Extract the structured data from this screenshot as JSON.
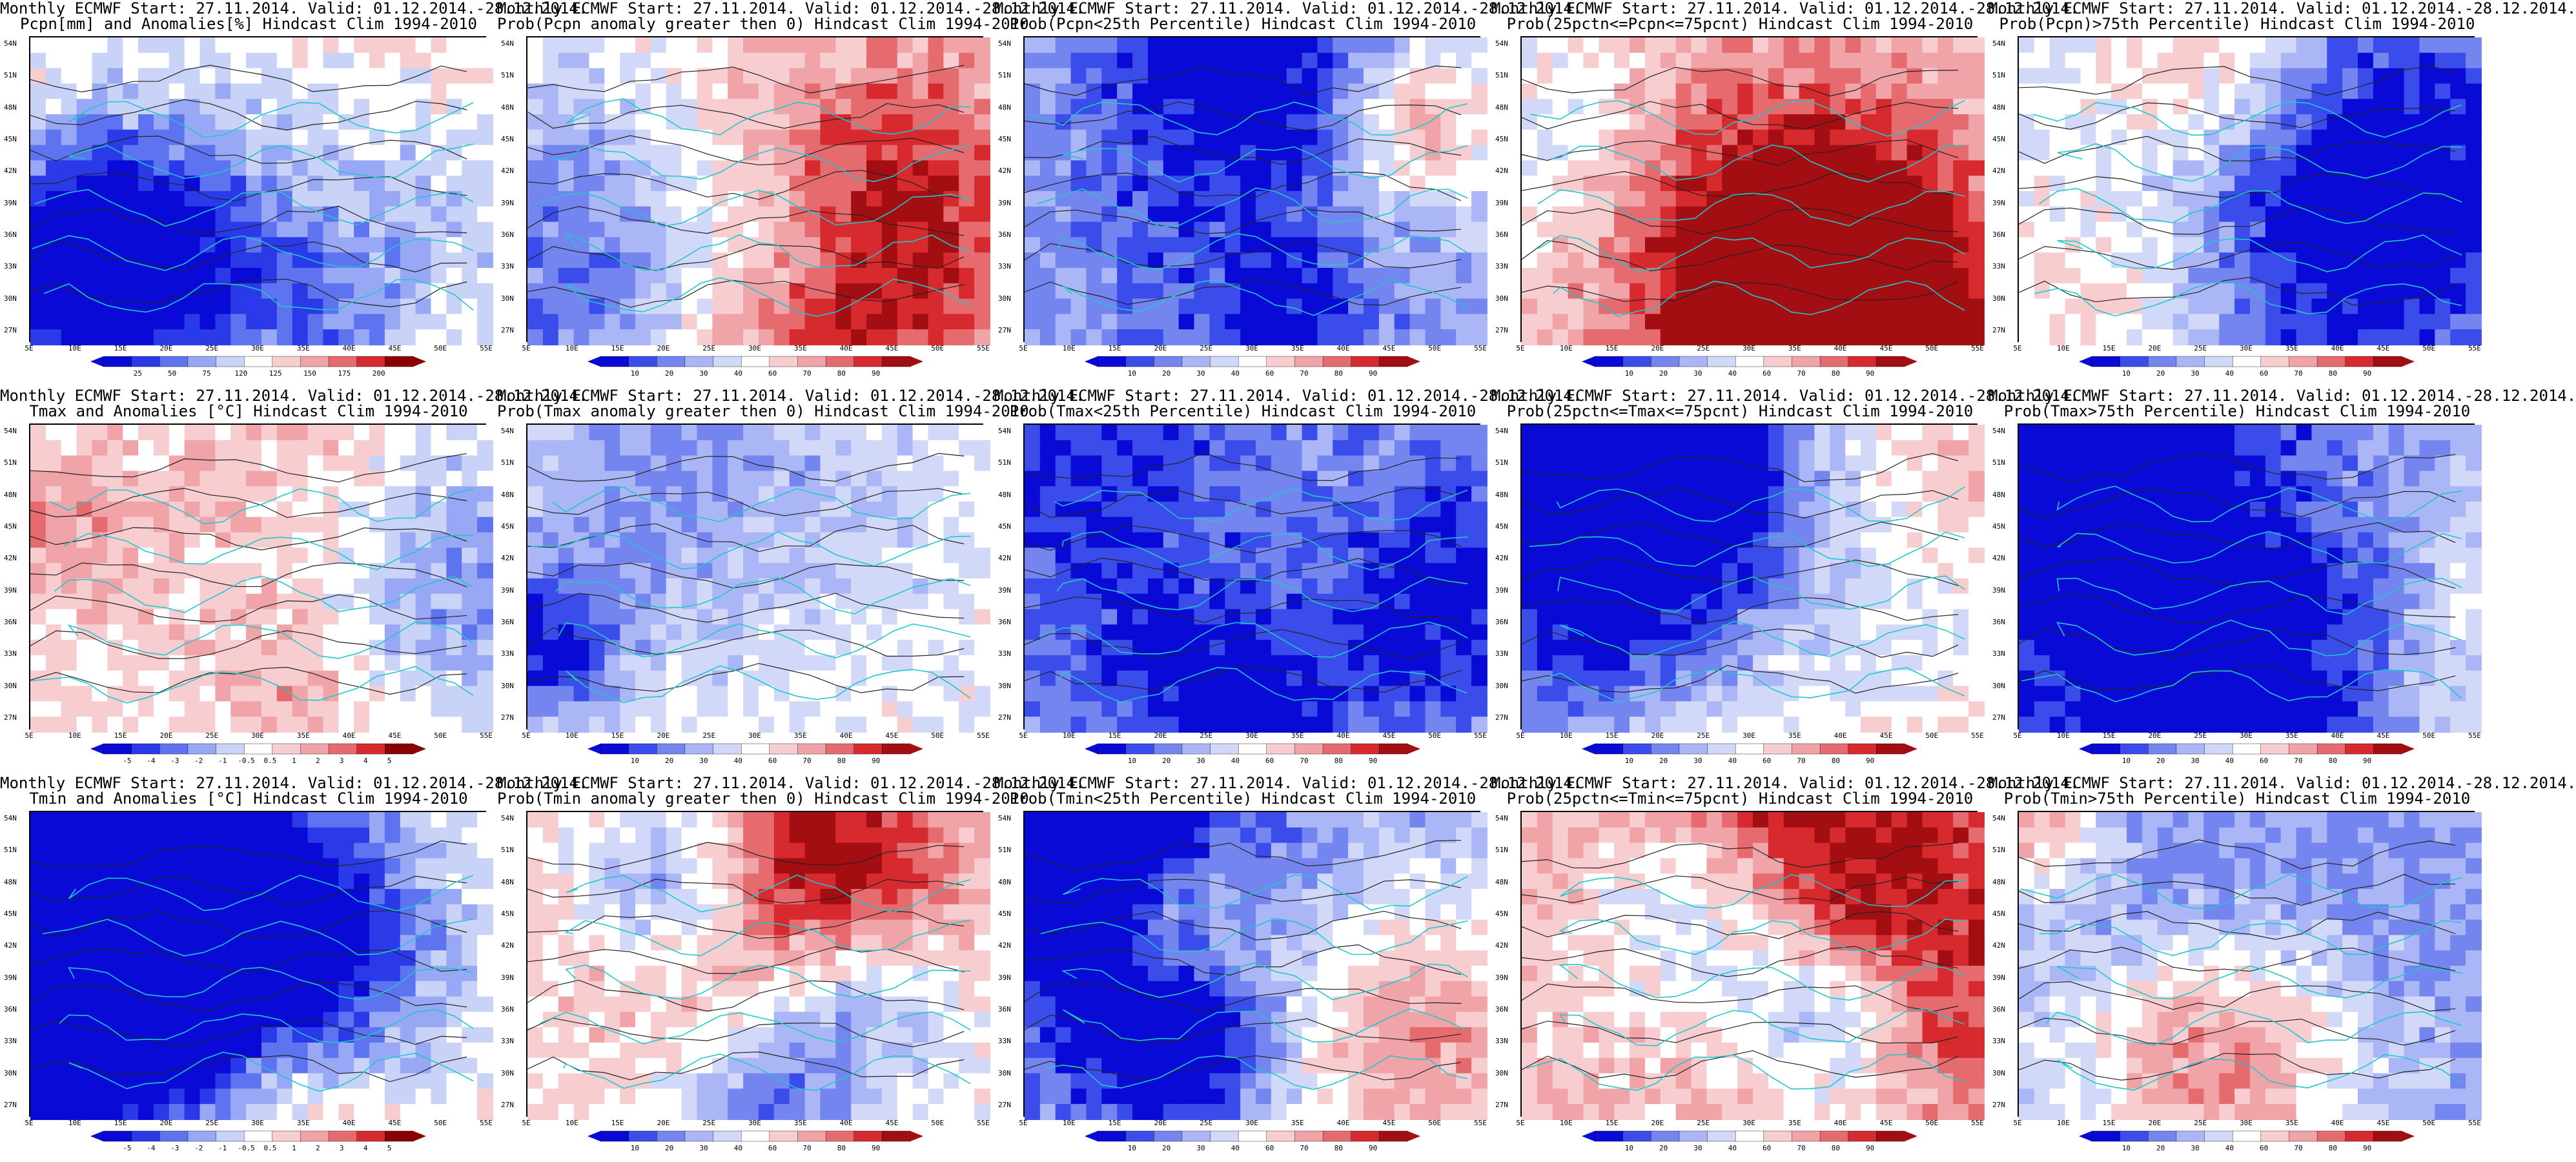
{
  "colors": {
    "ocean": "#0d0db8",
    "land_outline": "#1ec8cc",
    "contour": "#222222",
    "palette_div": [
      "#0a0ad6",
      "#2a3ae8",
      "#5e73ef",
      "#98a8f4",
      "#c9d2f7",
      "#ffffff",
      "#f7cdd0",
      "#f0a4a8",
      "#e56b6e",
      "#d62a2e",
      "#8b0000"
    ],
    "palette_prob": [
      "#0a0ad6",
      "#3a4ce9",
      "#7485f0",
      "#aab6f5",
      "#d2d9f8",
      "#ffffff",
      "#f7cdd0",
      "#f0a4a8",
      "#e56b6e",
      "#d62a2e",
      "#a30e12"
    ]
  },
  "icons": {
    "map": "geographic-map",
    "colorbar": "colorbar"
  },
  "axes": {
    "lon_labels": [
      "5E",
      "10E",
      "15E",
      "20E",
      "25E",
      "30E",
      "35E",
      "40E",
      "45E",
      "50E",
      "55E"
    ],
    "lat_labels": [
      "54N",
      "51N",
      "48N",
      "45N",
      "42N",
      "39N",
      "36N",
      "33N",
      "30N",
      "27N"
    ]
  },
  "scales": {
    "pcpn": [
      "25",
      "50",
      "75",
      "120",
      "125",
      "150",
      "175",
      "200"
    ],
    "temp": [
      "-5",
      "-4",
      "-3",
      "-2",
      "-1",
      "-0.5",
      "0.5",
      "1",
      "2",
      "3",
      "4",
      "5"
    ],
    "prob": [
      "10",
      "20",
      "30",
      "40",
      "60",
      "70",
      "80",
      "90"
    ]
  },
  "panels": [
    {
      "title1": "Monthly ECMWF Start: 27.11.2014. Valid: 01.12.2014.-28.12.2014.",
      "title2": "Pcpn[mm] and Anomalies[%] Hindcast Clim 1994-2010",
      "scale": "pcpn",
      "mean": 0.1
    },
    {
      "title1": "Monthly ECMWF Start: 27.11.2014. Valid: 01.12.2014.-28.12.2014.",
      "title2": "Prob(Pcpn anomaly greater then 0) Hindcast Clim 1994-2010",
      "scale": "prob",
      "mean": 0.1
    },
    {
      "title1": "Monthly ECMWF Start: 27.11.2014. Valid: 01.12.2014.-28.12.2014.",
      "title2": "Prob(Pcpn<25th Percentile) Hindcast Clim 1994-2010",
      "scale": "prob",
      "mean": -0.45
    },
    {
      "title1": "Monthly ECMWF Start: 27.11.2014. Valid: 01.12.2014.-28.12.2014.",
      "title2": "Prob(25pctn<=Pcpn<=75pcnt) Hindcast Clim 1994-2010",
      "scale": "prob",
      "mean": 0.15
    },
    {
      "title1": "Monthly ECMWF Start: 27.11.2014. Valid: 01.12.2014.-28.12.2014.",
      "title2": "Prob(Pcpn)>75th Percentile) Hindcast Clim 1994-2010",
      "scale": "prob",
      "mean": -0.25
    },
    {
      "title1": "Monthly ECMWF Start: 27.11.2014. Valid: 01.12.2014.-28.12.2014.",
      "title2": "Tmax and Anomalies [°C] Hindcast Clim 1994-2010",
      "scale": "temp",
      "mean": 0.05
    },
    {
      "title1": "Monthly ECMWF Start: 27.11.2014. Valid: 01.12.2014.-28.12.2014.",
      "title2": "Prob(Tmax anomaly greater then 0) Hindcast Clim 1994-2010",
      "scale": "prob",
      "mean": 0.05
    },
    {
      "title1": "Monthly ECMWF Start: 27.11.2014. Valid: 01.12.2014.-28.12.2014.",
      "title2": "Prob(Tmax<25th Percentile) Hindcast Clim 1994-2010",
      "scale": "prob",
      "mean": -0.5
    },
    {
      "title1": "Monthly ECMWF Start: 27.11.2014. Valid: 01.12.2014.-28.12.2014.",
      "title2": "Prob(25pctn<=Tmax<=75pcnt) Hindcast Clim 1994-2010",
      "scale": "prob",
      "mean": 0.3
    },
    {
      "title1": "Monthly ECMWF Start: 27.11.2014. Valid: 01.12.2014.-28.12.2014.",
      "title2": "Prob(Tmax>75th Percentile) Hindcast Clim 1994-2010",
      "scale": "prob",
      "mean": -0.5
    },
    {
      "title1": "Monthly ECMWF Start: 27.11.2014. Valid: 01.12.2014.-28.12.2014.",
      "title2": "Tmin and Anomalies [°C] Hindcast Clim 1994-2010",
      "scale": "temp",
      "mean": 0.1
    },
    {
      "title1": "Monthly ECMWF Start: 27.11.2014. Valid: 01.12.2014.-28.12.2014.",
      "title2": "Prob(Tmin anomaly greater then 0) Hindcast Clim 1994-2010",
      "scale": "prob",
      "mean": 0.0
    },
    {
      "title1": "Monthly ECMWF Start: 27.11.2014. Valid: 01.12.2014.-28.12.2014.",
      "title2": "Prob(Tmin<25th Percentile) Hindcast Clim 1994-2010",
      "scale": "prob",
      "mean": -0.5
    },
    {
      "title1": "Monthly ECMWF Start: 27.11.2014. Valid: 01.12.2014.-28.12.2014.",
      "title2": "Prob(25pctn<=Tmin<=75pcnt) Hindcast Clim 1994-2010",
      "scale": "prob",
      "mean": 0.25
    },
    {
      "title1": "Monthly ECMWF Start: 27.11.2014. Valid: 01.12.2014.-28.12.2014.",
      "title2": "Prob(Tmin>75th Percentile) Hindcast Clim 1994-2010",
      "scale": "prob",
      "mean": -0.5
    }
  ]
}
